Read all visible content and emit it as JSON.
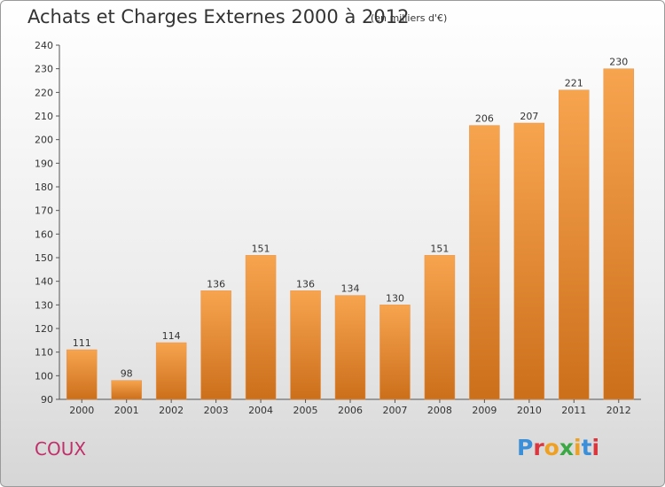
{
  "header": {
    "title": "Achats et Charges Externes 2000 à 2012",
    "subtitle": "(en milliers d'€)"
  },
  "footer": {
    "commune": "COUX",
    "logo": "Proxiti"
  },
  "colors": {
    "bar_top": "#f7a44f",
    "bar_bottom": "#cc6f1b",
    "commune": "#c0306a",
    "logo_letters": [
      "#3a8fd8",
      "#d9363e",
      "#f0a020",
      "#3aa845",
      "#f0a020",
      "#3a8fd8",
      "#d9363e"
    ]
  },
  "chart_data": {
    "type": "bar",
    "title": "Achats et Charges Externes 2000 à 2012",
    "categories": [
      "2000",
      "2001",
      "2002",
      "2003",
      "2004",
      "2005",
      "2006",
      "2007",
      "2008",
      "2009",
      "2010",
      "2011",
      "2012"
    ],
    "values": [
      111,
      98,
      114,
      136,
      151,
      136,
      134,
      130,
      151,
      206,
      207,
      221,
      230
    ],
    "ylim": [
      90,
      240
    ],
    "yticks": [
      90,
      100,
      110,
      120,
      130,
      140,
      150,
      160,
      170,
      180,
      190,
      200,
      210,
      220,
      230,
      240
    ],
    "grid": false,
    "data_labels": true
  }
}
